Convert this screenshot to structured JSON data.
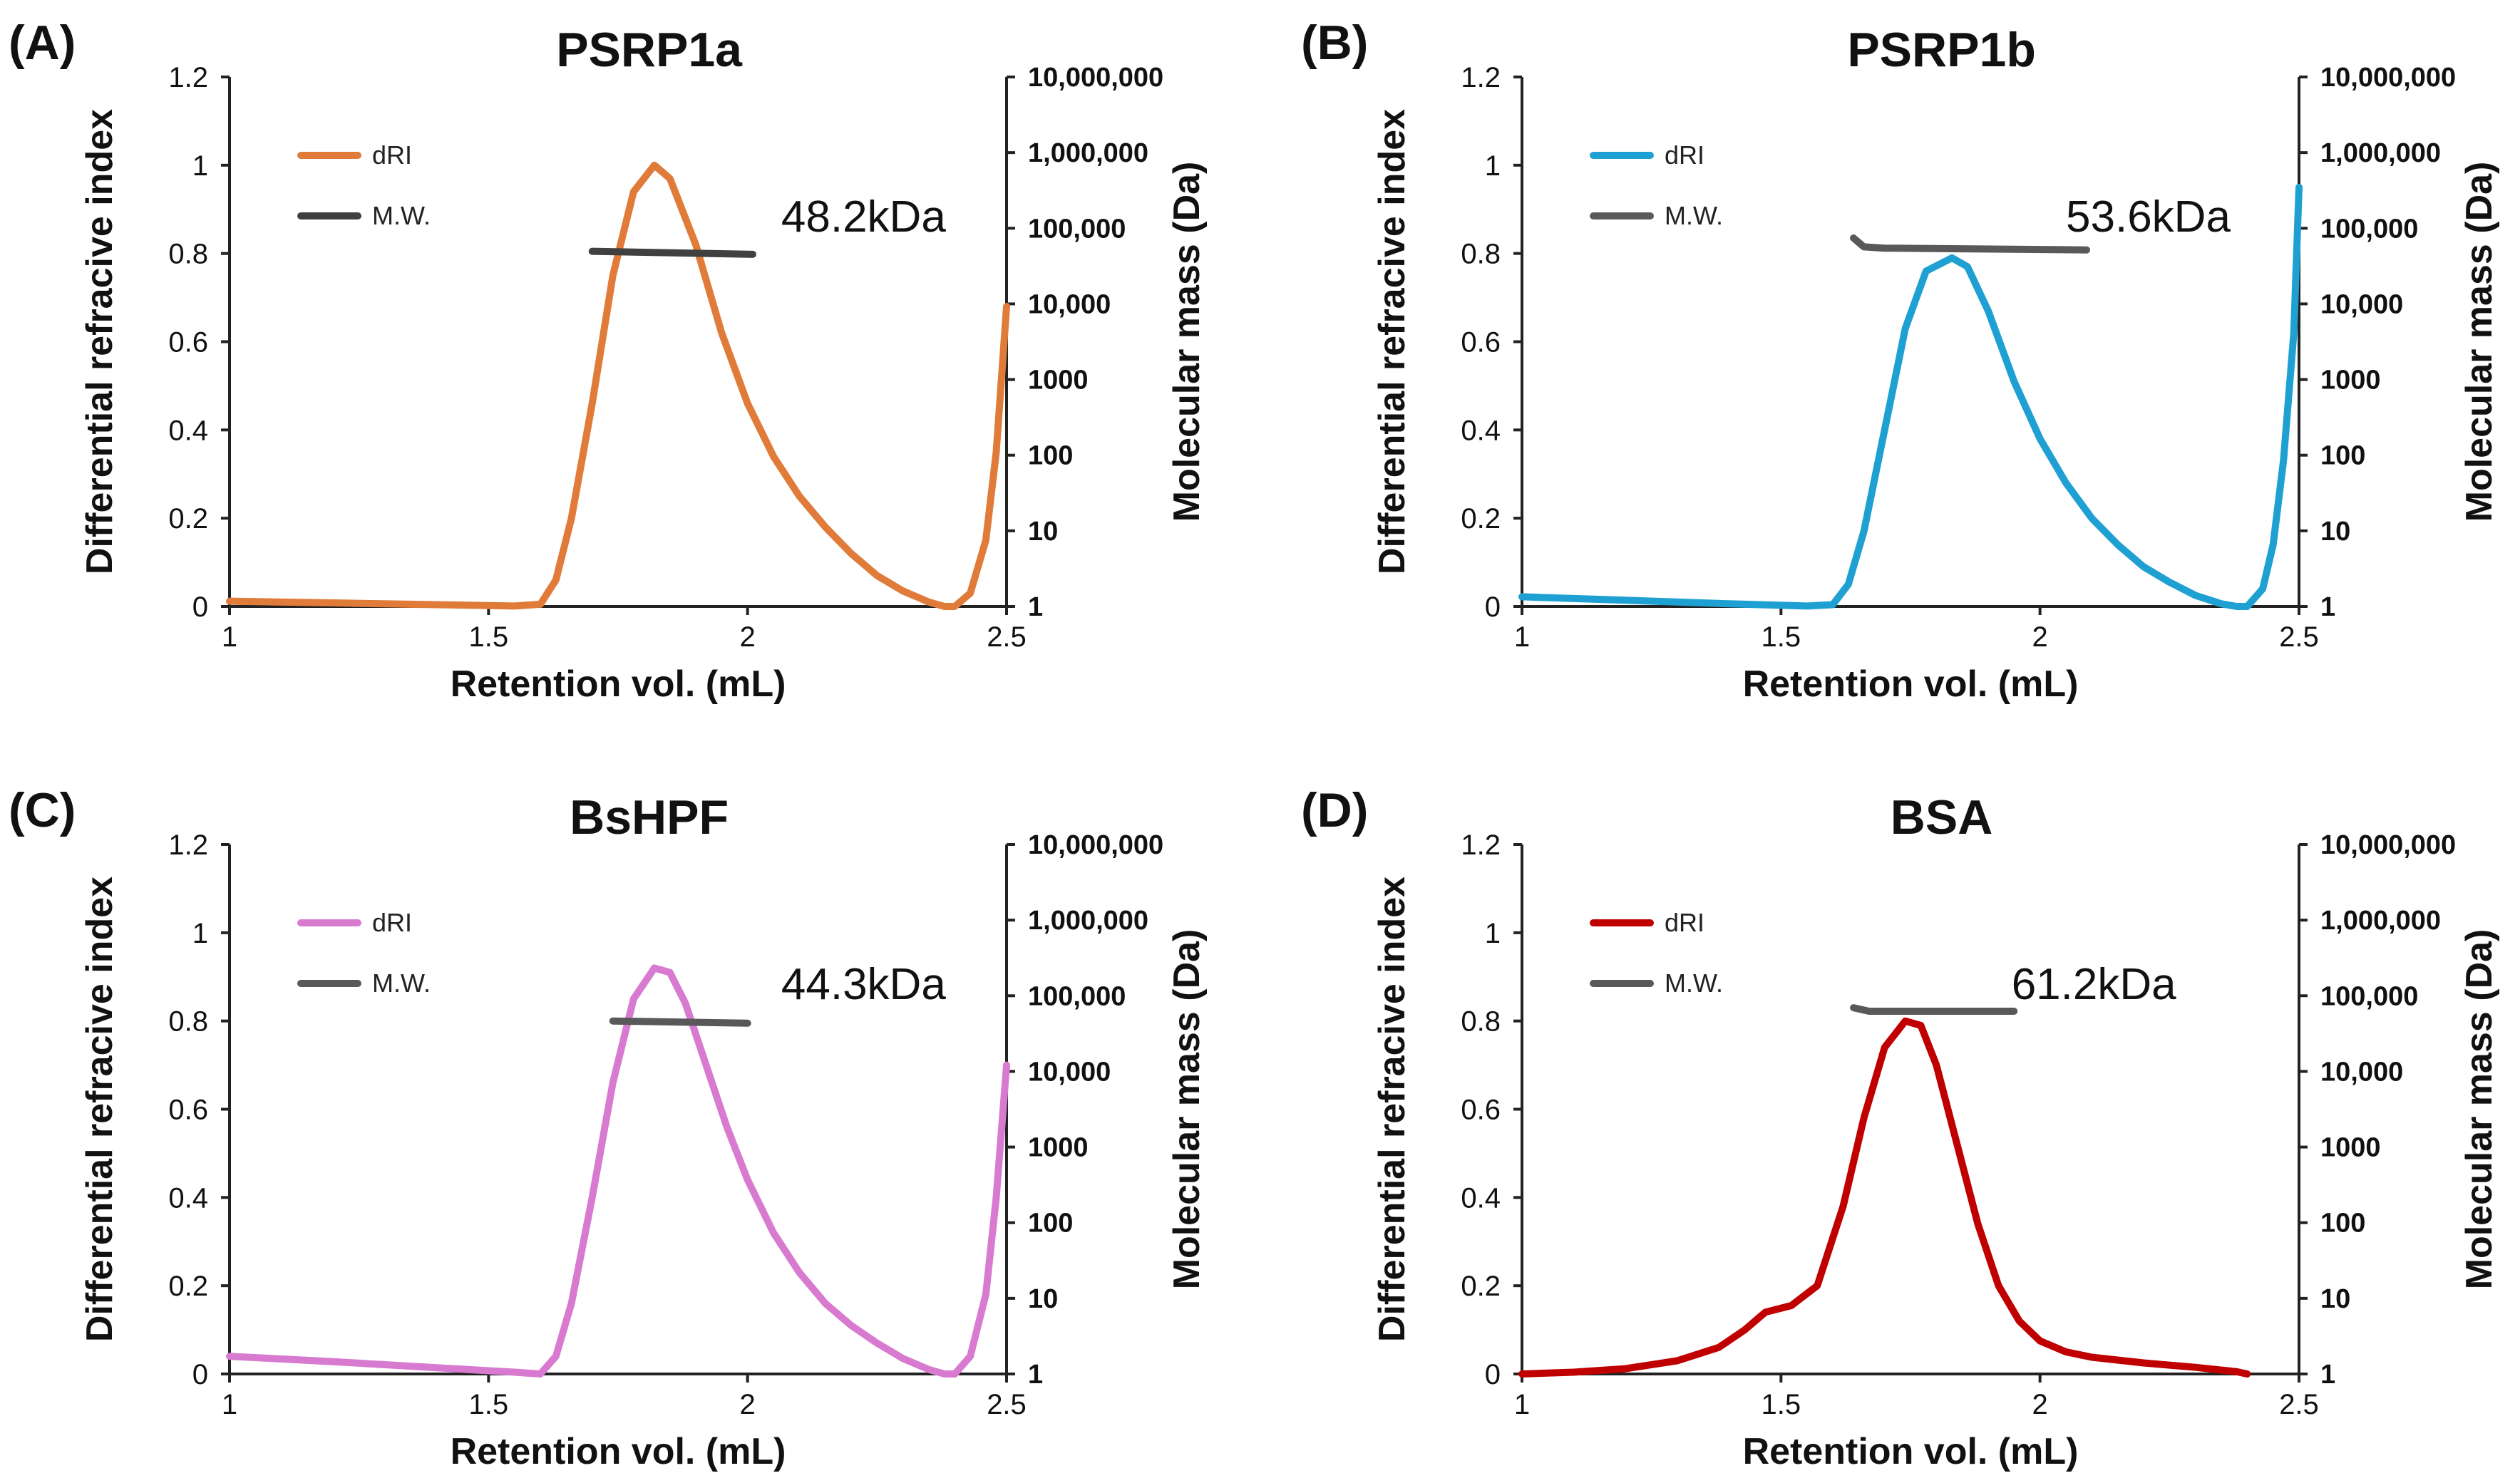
{
  "chart_data": [
    {
      "type": "line",
      "panel": "(A)",
      "title": "PSRP1a",
      "xlabel": "Retention vol. (mL)",
      "ylabel": "Differential refracive index",
      "y2label": "Molecular mass (Da)",
      "xlim": [
        1,
        2.5
      ],
      "ylim": [
        0,
        1.2
      ],
      "xticks": [
        "1",
        "1.5",
        "2",
        "2.5"
      ],
      "yticks": [
        "0",
        "0.2",
        "0.4",
        "0.6",
        "0.8",
        "1",
        "1.2"
      ],
      "y2ticks": [
        "1",
        "10",
        "100",
        "1000",
        "10,000",
        "100,000",
        "1,000,000",
        "10,000,000"
      ],
      "legend": {
        "entries": [
          "dRI",
          "M.W."
        ],
        "position": "top-left"
      },
      "annotation": "48.2kDa",
      "colors": {
        "dri": "#E07B39",
        "mw": "#404040"
      },
      "series": [
        {
          "name": "dRI",
          "x": [
            1.0,
            1.2,
            1.4,
            1.55,
            1.6,
            1.63,
            1.66,
            1.7,
            1.74,
            1.78,
            1.82,
            1.85,
            1.9,
            1.95,
            2.0,
            2.05,
            2.1,
            2.15,
            2.2,
            2.25,
            2.3,
            2.35,
            2.38,
            2.4,
            2.43,
            2.46,
            2.48,
            2.5
          ],
          "y": [
            0.012,
            0.008,
            0.004,
            0.001,
            0.005,
            0.06,
            0.2,
            0.46,
            0.75,
            0.94,
            1.0,
            0.97,
            0.82,
            0.62,
            0.46,
            0.34,
            0.25,
            0.18,
            0.12,
            0.07,
            0.035,
            0.01,
            0.0,
            0.0,
            0.03,
            0.15,
            0.35,
            0.68
          ]
        },
        {
          "name": "M.W.",
          "x": [
            1.7,
            2.01
          ],
          "y": [
            0.805,
            0.798
          ]
        }
      ]
    },
    {
      "type": "line",
      "panel": "(B)",
      "title": "PSRP1b",
      "xlabel": "Retention vol. (mL)",
      "ylabel": "Differential refracive index",
      "y2label": "Molecular mass (Da)",
      "xlim": [
        1,
        2.5
      ],
      "ylim": [
        0,
        1.2
      ],
      "xticks": [
        "1",
        "1.5",
        "2",
        "2.5"
      ],
      "yticks": [
        "0",
        "0.2",
        "0.4",
        "0.6",
        "0.8",
        "1",
        "1.2"
      ],
      "y2ticks": [
        "1",
        "10",
        "100",
        "1000",
        "10,000",
        "100,000",
        "1,000,000",
        "10,000,000"
      ],
      "legend": {
        "entries": [
          "dRI",
          "M.W."
        ],
        "position": "top-left"
      },
      "annotation": "53.6kDa",
      "colors": {
        "dri": "#1FA0D2",
        "mw": "#595959"
      },
      "series": [
        {
          "name": "dRI",
          "x": [
            1.0,
            1.2,
            1.4,
            1.55,
            1.6,
            1.63,
            1.66,
            1.7,
            1.74,
            1.78,
            1.83,
            1.86,
            1.9,
            1.95,
            2.0,
            2.05,
            2.1,
            2.15,
            2.2,
            2.25,
            2.3,
            2.35,
            2.38,
            2.4,
            2.43,
            2.45,
            2.47,
            2.49,
            2.5
          ],
          "y": [
            0.022,
            0.014,
            0.006,
            0.001,
            0.004,
            0.05,
            0.17,
            0.4,
            0.63,
            0.76,
            0.79,
            0.77,
            0.67,
            0.51,
            0.38,
            0.28,
            0.2,
            0.14,
            0.09,
            0.055,
            0.025,
            0.006,
            0.0,
            0.0,
            0.04,
            0.14,
            0.33,
            0.62,
            0.95
          ]
        },
        {
          "name": "M.W.",
          "x": [
            1.64,
            1.66,
            1.7,
            2.09
          ],
          "y": [
            0.835,
            0.815,
            0.812,
            0.808
          ]
        }
      ]
    },
    {
      "type": "line",
      "panel": "(C)",
      "title": "BsHPF",
      "xlabel": "Retention vol. (mL)",
      "ylabel": "Differential refracive index",
      "y2label": "Molecular mass (Da)",
      "xlim": [
        1,
        2.5
      ],
      "ylim": [
        0,
        1.2
      ],
      "xticks": [
        "1",
        "1.5",
        "2",
        "2.5"
      ],
      "yticks": [
        "0",
        "0.2",
        "0.4",
        "0.6",
        "0.8",
        "1",
        "1.2"
      ],
      "y2ticks": [
        "1",
        "10",
        "100",
        "1000",
        "10,000",
        "100,000",
        "1,000,000",
        "10,000,000"
      ],
      "legend": {
        "entries": [
          "dRI",
          "M.W."
        ],
        "position": "top-left"
      },
      "annotation": "44.3kDa",
      "colors": {
        "dri": "#D87BD0",
        "mw": "#595959"
      },
      "series": [
        {
          "name": "dRI",
          "x": [
            1.0,
            1.2,
            1.4,
            1.55,
            1.6,
            1.63,
            1.66,
            1.7,
            1.74,
            1.78,
            1.82,
            1.85,
            1.88,
            1.92,
            1.96,
            2.0,
            2.05,
            2.1,
            2.15,
            2.2,
            2.25,
            2.3,
            2.35,
            2.38,
            2.4,
            2.43,
            2.46,
            2.48,
            2.5
          ],
          "y": [
            0.04,
            0.028,
            0.014,
            0.004,
            0.0,
            0.04,
            0.16,
            0.4,
            0.66,
            0.85,
            0.92,
            0.91,
            0.84,
            0.7,
            0.56,
            0.44,
            0.32,
            0.23,
            0.16,
            0.11,
            0.07,
            0.035,
            0.01,
            0.0,
            0.0,
            0.04,
            0.18,
            0.4,
            0.7
          ]
        },
        {
          "name": "M.W.",
          "x": [
            1.74,
            2.0
          ],
          "y": [
            0.8,
            0.795
          ]
        }
      ]
    },
    {
      "type": "line",
      "panel": "(D)",
      "title": "BSA",
      "xlabel": "Retention vol. (mL)",
      "ylabel": "Differential refracive index",
      "y2label": "Molecular mass (Da)",
      "xlim": [
        1,
        2.5
      ],
      "ylim": [
        0,
        1.2
      ],
      "xticks": [
        "1",
        "1.5",
        "2",
        "2.5"
      ],
      "yticks": [
        "0",
        "0.2",
        "0.4",
        "0.6",
        "0.8",
        "1",
        "1.2"
      ],
      "y2ticks": [
        "1",
        "10",
        "100",
        "1000",
        "10,000",
        "100,000",
        "1,000,000",
        "10,000,000"
      ],
      "legend": {
        "entries": [
          "dRI",
          "M.W."
        ],
        "position": "top-left"
      },
      "annotation": "61.2kDa",
      "colors": {
        "dri": "#C00000",
        "mw": "#595959"
      },
      "series": [
        {
          "name": "dRI",
          "x": [
            1.0,
            1.1,
            1.2,
            1.3,
            1.38,
            1.43,
            1.47,
            1.52,
            1.57,
            1.62,
            1.66,
            1.7,
            1.74,
            1.77,
            1.8,
            1.84,
            1.88,
            1.92,
            1.96,
            2.0,
            2.05,
            2.1,
            2.2,
            2.3,
            2.38,
            2.4
          ],
          "y": [
            0.0,
            0.004,
            0.012,
            0.03,
            0.06,
            0.1,
            0.14,
            0.155,
            0.2,
            0.38,
            0.58,
            0.74,
            0.8,
            0.79,
            0.7,
            0.52,
            0.34,
            0.2,
            0.12,
            0.075,
            0.05,
            0.038,
            0.025,
            0.015,
            0.005,
            0.0
          ]
        },
        {
          "name": "M.W.",
          "x": [
            1.64,
            1.67,
            1.95
          ],
          "y": [
            0.83,
            0.822,
            0.822
          ]
        }
      ]
    }
  ]
}
